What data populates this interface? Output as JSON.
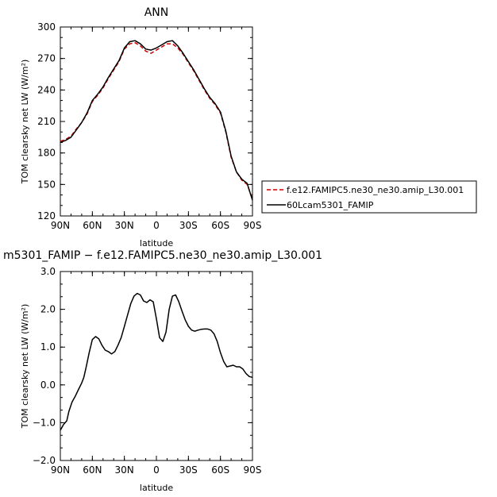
{
  "chart_data": [
    {
      "type": "line",
      "title": "ANN",
      "xlabel": "latitude",
      "ylabel": "TOM clearsky net LW (W/m²)",
      "xlim": [
        90,
        -90
      ],
      "ylim": [
        120,
        300
      ],
      "y_ticks": [
        "300",
        "270",
        "240",
        "210",
        "180",
        "150",
        "120"
      ],
      "y_tick_values": [
        300,
        270,
        240,
        210,
        180,
        150,
        120
      ],
      "x_ticks": [
        "90N",
        "60N",
        "30N",
        "0",
        "30S",
        "60S",
        "90S"
      ],
      "x_tick_values": [
        90,
        60,
        30,
        0,
        -30,
        -60,
        -90
      ],
      "legend_position": "right",
      "series": [
        {
          "name": "f.e12.FAMIPC5.ne30_ne30.amip_L30.001",
          "color": "#cc0000",
          "dash": "dashed",
          "x": [
            90,
            85,
            80,
            75,
            70,
            65,
            60,
            55,
            50,
            45,
            40,
            35,
            30,
            25,
            20,
            15,
            10,
            5,
            0,
            -5,
            -10,
            -15,
            -20,
            -25,
            -30,
            -35,
            -40,
            -45,
            -50,
            -55,
            -60,
            -65,
            -70,
            -75,
            -80,
            -85,
            -90
          ],
          "y": [
            191,
            193,
            196,
            203,
            209,
            217,
            229,
            235,
            242,
            251,
            259,
            267,
            279,
            284,
            285,
            282,
            277,
            275,
            278,
            281,
            284,
            284,
            280,
            274,
            266,
            258,
            249,
            240,
            232,
            226,
            218,
            200,
            176,
            162,
            154,
            150,
            136
          ]
        },
        {
          "name": "60Lcam5301_FAMIP",
          "color": "#000000",
          "dash": "solid",
          "x": [
            90,
            85,
            80,
            75,
            70,
            65,
            60,
            55,
            50,
            45,
            40,
            35,
            30,
            25,
            20,
            15,
            10,
            5,
            0,
            -5,
            -10,
            -15,
            -20,
            -25,
            -30,
            -35,
            -40,
            -45,
            -50,
            -55,
            -60,
            -65,
            -70,
            -75,
            -80,
            -85,
            -90
          ],
          "y": [
            190,
            192,
            195,
            202,
            209,
            218,
            230,
            236,
            243,
            252,
            260,
            268,
            280,
            286,
            287,
            284,
            279,
            278,
            280,
            283,
            286,
            287,
            282,
            275,
            267,
            259,
            250,
            241,
            233,
            227,
            219,
            201,
            177,
            162,
            155,
            151,
            135
          ]
        }
      ]
    },
    {
      "type": "line",
      "title": "m5301_FAMIP − f.e12.FAMIPC5.ne30_ne30.amip_L30.001",
      "xlabel": "latitude",
      "ylabel": "TOM clearsky net LW (W/m²)",
      "xlim": [
        90,
        -90
      ],
      "ylim": [
        -2.0,
        3.0
      ],
      "y_ticks": [
        "3.0",
        "2.0",
        "1.0",
        "0.0",
        "−1.0",
        "−2.0"
      ],
      "y_tick_values": [
        3.0,
        2.0,
        1.0,
        0.0,
        -1.0,
        -2.0
      ],
      "x_ticks": [
        "90N",
        "60N",
        "30N",
        "0",
        "30S",
        "60S",
        "90S"
      ],
      "x_tick_values": [
        90,
        60,
        30,
        0,
        -30,
        -60,
        -90
      ],
      "series": [
        {
          "color": "#000000",
          "x": [
            90,
            87,
            84,
            82,
            79,
            76,
            73,
            70,
            68,
            66,
            63,
            60,
            57,
            54,
            51,
            48,
            45,
            42,
            39,
            36,
            33,
            30,
            27,
            24,
            21,
            18,
            15,
            12,
            9,
            6,
            3,
            0,
            -3,
            -6,
            -9,
            -12,
            -15,
            -18,
            -21,
            -24,
            -27,
            -30,
            -33,
            -36,
            -39,
            -42,
            -45,
            -48,
            -51,
            -54,
            -57,
            -60,
            -63,
            -66,
            -69,
            -72,
            -75,
            -78,
            -81,
            -84,
            -87,
            -90
          ],
          "y": [
            -1.2,
            -1.05,
            -0.95,
            -0.7,
            -0.45,
            -0.3,
            -0.12,
            0.05,
            0.2,
            0.45,
            0.85,
            1.2,
            1.28,
            1.22,
            1.05,
            0.92,
            0.88,
            0.82,
            0.88,
            1.05,
            1.25,
            1.55,
            1.85,
            2.15,
            2.35,
            2.42,
            2.38,
            2.22,
            2.18,
            2.25,
            2.2,
            1.75,
            1.25,
            1.15,
            1.4,
            2.0,
            2.35,
            2.38,
            2.2,
            1.95,
            1.72,
            1.55,
            1.45,
            1.42,
            1.45,
            1.47,
            1.48,
            1.48,
            1.45,
            1.35,
            1.15,
            0.85,
            0.62,
            0.48,
            0.5,
            0.52,
            0.48,
            0.48,
            0.42,
            0.3,
            0.22,
            0.2
          ]
        }
      ]
    }
  ]
}
